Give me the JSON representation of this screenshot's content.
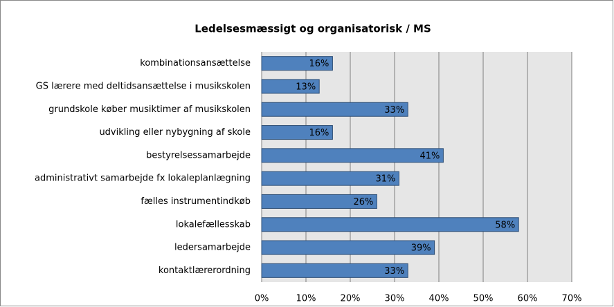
{
  "chart_data": {
    "type": "bar",
    "orientation": "horizontal",
    "title": "Ledelsesmæssigt og organisatorisk / MS",
    "categories": [
      "kombinationsansættelse",
      "GS lærere med deltidsansættelse i musikskolen",
      "grundskole køber musiktimer af musikskolen",
      "udvikling eller nybygning af skole",
      "bestyrelsessamarbejde",
      "administrativt samarbejde fx lokaleplanlægning",
      "fælles instrumentindkøb",
      "lokalefællesskab",
      "ledersamarbejde",
      "kontaktlærerordning"
    ],
    "values": [
      16,
      13,
      33,
      16,
      41,
      31,
      26,
      58,
      39,
      33
    ],
    "value_labels": [
      "16%",
      "13%",
      "33%",
      "16%",
      "41%",
      "31%",
      "26%",
      "58%",
      "39%",
      "33%"
    ],
    "color": "#4f81bd",
    "xlim": [
      0,
      70
    ],
    "xticks": [
      {
        "value": 0,
        "label": "0%"
      },
      {
        "value": 10,
        "label": "10%"
      },
      {
        "value": 20,
        "label": "20%"
      },
      {
        "value": 30,
        "label": "30%"
      },
      {
        "value": 40,
        "label": "40%"
      },
      {
        "value": 50,
        "label": "50%"
      },
      {
        "value": 60,
        "label": "60%"
      },
      {
        "value": 70,
        "label": "70%"
      }
    ],
    "grid": true
  }
}
